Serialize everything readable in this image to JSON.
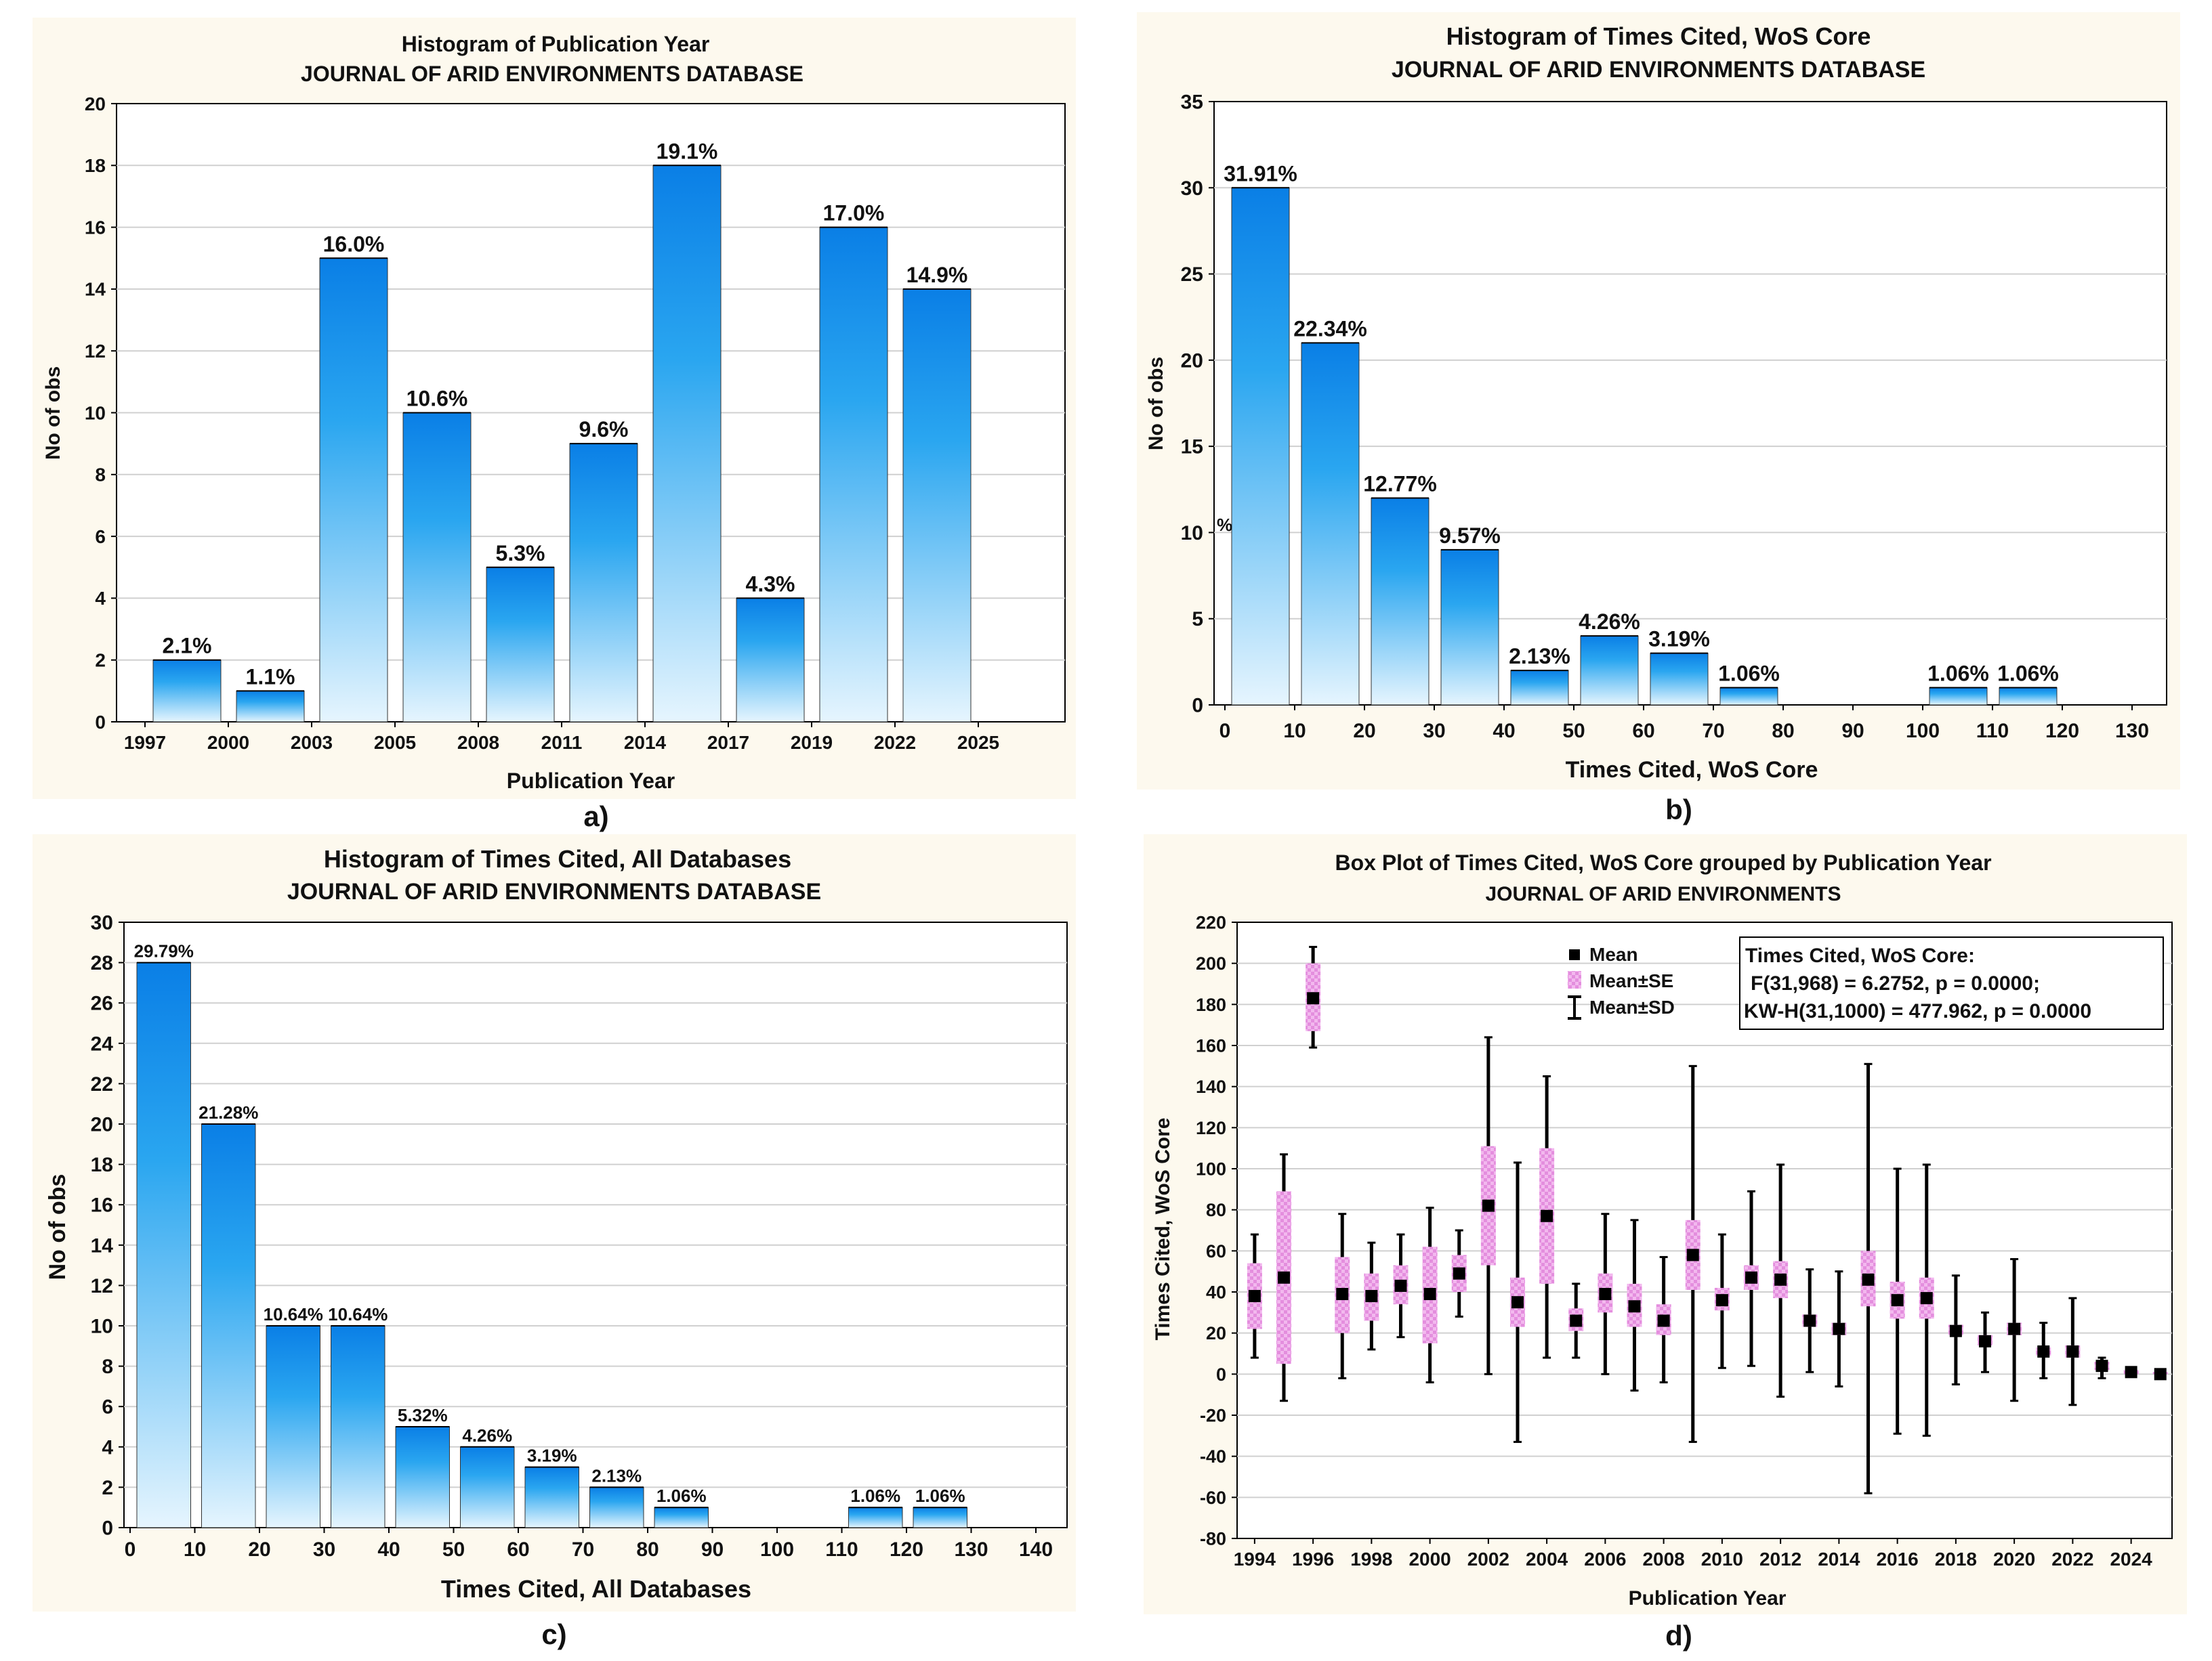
{
  "panel_letters": [
    "a)",
    "b)",
    "c)",
    "d)"
  ],
  "chart_data": [
    {
      "type": "bar",
      "title": "Histogram of Publication Year",
      "subtitle": "JOURNAL OF ARID ENVIRONMENTS DATABASE",
      "xlabel": "Publication Year",
      "ylabel": "No of obs",
      "x_ticks": [
        "1997",
        "2000",
        "2003",
        "2005",
        "2008",
        "2011",
        "2014",
        "2017",
        "2019",
        "2022",
        "2025"
      ],
      "y_ticks": [
        "0",
        "2",
        "4",
        "6",
        "8",
        "10",
        "12",
        "14",
        "16",
        "18",
        "20"
      ],
      "ylim": [
        0,
        20
      ],
      "values": [
        2,
        1,
        15,
        10,
        5,
        9,
        18,
        4,
        16,
        14
      ],
      "bar_labels": [
        "2.1%",
        "1.1%",
        "16.0%",
        "10.6%",
        "5.3%",
        "9.6%",
        "19.1%",
        "4.3%",
        "17.0%",
        "14.9%"
      ]
    },
    {
      "type": "bar",
      "title": "Histogram of Times Cited, WoS Core",
      "subtitle": "JOURNAL OF ARID ENVIRONMENTS DATABASE",
      "xlabel": "Times Cited, WoS Core",
      "ylabel": "No of obs",
      "x_ticks": [
        "0",
        "10",
        "20",
        "30",
        "40",
        "50",
        "60",
        "70",
        "80",
        "90",
        "100",
        "110",
        "120",
        "130"
      ],
      "y_ticks": [
        "0",
        "5",
        "10",
        "15",
        "20",
        "25",
        "30",
        "35"
      ],
      "xlim": [
        0,
        135
      ],
      "ylim": [
        0,
        35
      ],
      "bins": [
        [
          0,
          10
        ],
        [
          10,
          20
        ],
        [
          20,
          30
        ],
        [
          30,
          40
        ],
        [
          40,
          50
        ],
        [
          50,
          60
        ],
        [
          60,
          70
        ],
        [
          70,
          80
        ],
        [
          100,
          110
        ],
        [
          110,
          120
        ]
      ],
      "values": [
        30,
        21,
        12,
        9,
        2,
        4,
        3,
        1,
        1,
        1
      ],
      "bar_labels": [
        "31.91%",
        "22.34%",
        "12.77%",
        "9.57%",
        "2.13%",
        "4.26%",
        "3.19%",
        "1.06%",
        "1.06%",
        "1.06%"
      ],
      "stray_mark": "%"
    },
    {
      "type": "bar",
      "title": "Histogram of Times Cited, All Databases",
      "subtitle": "JOURNAL OF ARID ENVIRONMENTS DATABASE",
      "xlabel": "Times Cited, All Databases",
      "ylabel": "No of obs",
      "x_ticks": [
        "0",
        "10",
        "20",
        "30",
        "40",
        "50",
        "60",
        "70",
        "80",
        "90",
        "100",
        "110",
        "120",
        "130",
        "140"
      ],
      "y_ticks": [
        "0",
        "2",
        "4",
        "6",
        "8",
        "10",
        "12",
        "14",
        "16",
        "18",
        "20",
        "22",
        "24",
        "26",
        "28",
        "30"
      ],
      "xlim": [
        0,
        145
      ],
      "ylim": [
        0,
        30
      ],
      "bins": [
        [
          0,
          10
        ],
        [
          10,
          20
        ],
        [
          20,
          30
        ],
        [
          30,
          40
        ],
        [
          40,
          50
        ],
        [
          50,
          60
        ],
        [
          60,
          70
        ],
        [
          70,
          80
        ],
        [
          80,
          90
        ],
        [
          110,
          120
        ],
        [
          120,
          130
        ]
      ],
      "values": [
        28,
        20,
        10,
        10,
        5,
        4,
        3,
        2,
        1,
        1,
        1
      ],
      "bar_labels": [
        "29.79%",
        "21.28%",
        "10.64%",
        "10.64%",
        "5.32%",
        "4.26%",
        "3.19%",
        "2.13%",
        "1.06%",
        "1.06%",
        "1.06%"
      ]
    },
    {
      "type": "box",
      "title": "Box Plot of Times Cited, WoS Core grouped by  Publication Year",
      "subtitle": "JOURNAL OF ARID ENVIRONMENTS",
      "xlabel": "Publication Year",
      "ylabel": "Times Cited, WoS Core",
      "x_ticks": [
        "1994",
        "1996",
        "1998",
        "2000",
        "2002",
        "2004",
        "2006",
        "2008",
        "2010",
        "2012",
        "2014",
        "2016",
        "2018",
        "2020",
        "2022",
        "2024"
      ],
      "y_ticks": [
        "-80",
        "-60",
        "-40",
        "-20",
        "0",
        "20",
        "40",
        "60",
        "80",
        "100",
        "120",
        "140",
        "160",
        "180",
        "200",
        "220"
      ],
      "ylim": [
        -80,
        220
      ],
      "xlim": [
        1993.4,
        2025.4
      ],
      "legend": [
        "Mean",
        "Mean±SE",
        "Mean±SD"
      ],
      "stats_lines": [
        "Times Cited, WoS Core:",
        "F(31,968) = 6.2752, p = 0.0000;",
        "KW-H(31,1000) = 477.962, p = 0.0000"
      ],
      "years": [
        1994,
        1995,
        1996,
        1997,
        1998,
        1999,
        2000,
        2001,
        2002,
        2003,
        2004,
        2005,
        2006,
        2007,
        2008,
        2009,
        2010,
        2011,
        2012,
        2013,
        2014,
        2015,
        2016,
        2017,
        2018,
        2019,
        2020,
        2021,
        2022,
        2023,
        2024,
        2025
      ],
      "mean": [
        38,
        47,
        183,
        39,
        38,
        43,
        39,
        49,
        82,
        35,
        77,
        26,
        39,
        33,
        26,
        58,
        36,
        47,
        46,
        26,
        22,
        46,
        36,
        37,
        21,
        16,
        22,
        11,
        11,
        4,
        1,
        0
      ],
      "se_low": [
        22,
        5,
        167,
        20,
        26,
        34,
        15,
        40,
        53,
        23,
        44,
        21,
        30,
        23,
        19,
        41,
        31,
        41,
        37,
        23,
        19,
        33,
        27,
        27,
        19,
        14,
        19,
        9,
        8,
        2,
        0,
        0
      ],
      "se_high": [
        54,
        89,
        200,
        57,
        49,
        53,
        62,
        58,
        111,
        47,
        110,
        32,
        49,
        44,
        34,
        75,
        42,
        53,
        55,
        29,
        25,
        60,
        45,
        47,
        24,
        19,
        25,
        13,
        14,
        6,
        2,
        1
      ],
      "sd_low": [
        8,
        -13,
        159,
        -2,
        12,
        18,
        -4,
        28,
        0,
        -33,
        8,
        8,
        0,
        -8,
        -4,
        -33,
        3,
        4,
        -11,
        1,
        -6,
        -58,
        -29,
        -30,
        -5,
        1,
        -13,
        -2,
        -15,
        -2,
        0,
        0
      ],
      "sd_high": [
        68,
        107,
        208,
        78,
        64,
        68,
        81,
        70,
        164,
        103,
        145,
        44,
        78,
        75,
        57,
        150,
        68,
        89,
        102,
        51,
        50,
        151,
        100,
        102,
        48,
        30,
        56,
        25,
        37,
        8,
        2,
        1
      ]
    }
  ]
}
